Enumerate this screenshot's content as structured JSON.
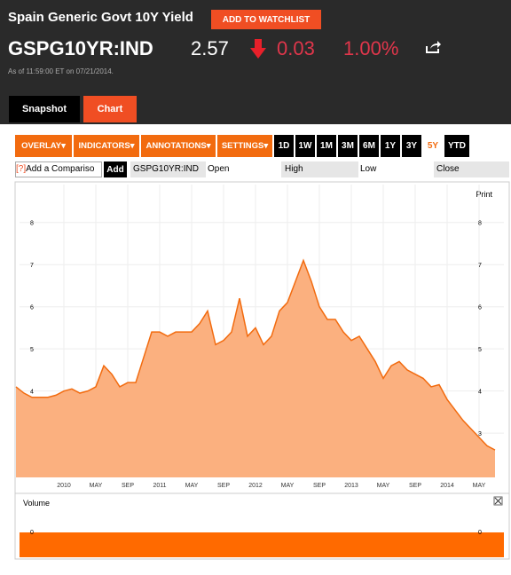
{
  "header": {
    "title": "Spain Generic Govt 10Y Yield",
    "watchlist": "ADD TO WATCHLIST",
    "ticker": "GSPG10YR:IND",
    "price": "2.57",
    "change": "0.03",
    "change_pct": "1.00%",
    "as_of": "As of 11:59:00 ET on 07/21/2014."
  },
  "tabs": [
    "Snapshot",
    "Chart"
  ],
  "toolbar": {
    "menus": [
      "OVERLAY",
      "INDICATORS",
      "ANNOTATIONS",
      "SETTINGS"
    ],
    "ranges": [
      "1D",
      "1W",
      "1M",
      "3M",
      "6M",
      "1Y",
      "3Y",
      "5Y",
      "YTD"
    ],
    "active_range": "5Y"
  },
  "compare": {
    "help": "[?]",
    "placeholder": "Add a Compariso",
    "add": "Add",
    "ticker": "GSPG10YR:IND",
    "fields": [
      "Open",
      "High",
      "Low",
      "Close"
    ]
  },
  "print": "Print",
  "chart_data": {
    "type": "area",
    "color": "#f26b0f",
    "fill": "#fbb07f",
    "categories": [
      null,
      null,
      null,
      null,
      null,
      null,
      "2010",
      null,
      null,
      null,
      "MAY",
      null,
      null,
      null,
      "SEP",
      null,
      null,
      null,
      "2011",
      null,
      null,
      null,
      "MAY",
      null,
      null,
      null,
      "SEP",
      null,
      null,
      null,
      "2012",
      null,
      null,
      null,
      "MAY",
      null,
      null,
      null,
      "SEP",
      null,
      null,
      null,
      "2013",
      null,
      null,
      null,
      "MAY",
      null,
      null,
      null,
      "SEP",
      null,
      null,
      null,
      "2014",
      null,
      null,
      null,
      "MAY",
      null,
      null
    ],
    "values": [
      4.1,
      3.95,
      3.85,
      3.85,
      3.85,
      3.9,
      4.0,
      4.05,
      3.95,
      4.0,
      4.1,
      4.6,
      4.4,
      4.1,
      4.2,
      4.2,
      4.8,
      5.4,
      5.4,
      5.3,
      5.4,
      5.4,
      5.4,
      5.6,
      5.9,
      5.1,
      5.2,
      5.4,
      6.2,
      5.3,
      5.5,
      5.1,
      5.3,
      5.9,
      6.1,
      6.6,
      7.1,
      6.6,
      6.0,
      5.7,
      5.7,
      5.4,
      5.2,
      5.3,
      5.0,
      4.7,
      4.3,
      4.6,
      4.7,
      4.5,
      4.4,
      4.3,
      4.1,
      4.15,
      3.8,
      3.55,
      3.3,
      3.1,
      2.9,
      2.7,
      2.6
    ],
    "ylim": [
      1.95,
      8.9
    ],
    "yticks": [
      3,
      4,
      5,
      6,
      7,
      8
    ],
    "grid": true
  },
  "volume": {
    "title": "Volume",
    "yticks": [
      0
    ]
  }
}
